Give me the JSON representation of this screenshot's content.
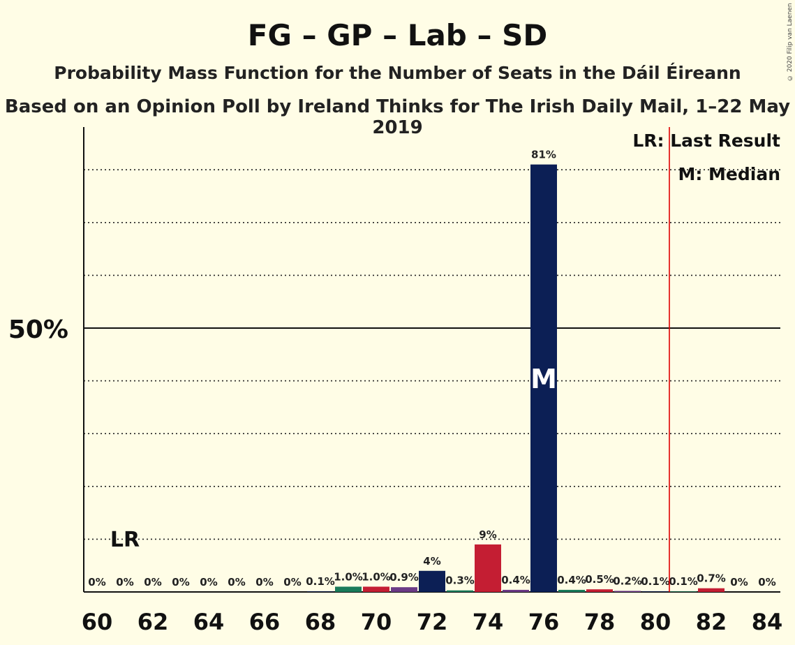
{
  "title": "FG – GP – Lab – SD",
  "subtitle": "Probability Mass Function for the Number of Seats in the Dáil Éireann",
  "subtitle2": "Based on an Opinion Poll by Ireland Thinks for The Irish Daily Mail, 1–22 May 2019",
  "copyright": "© 2020 Filip van Laenen",
  "legend": {
    "last_result": "LR: Last Result",
    "median": "M: Median"
  },
  "colors": {
    "background": "#fffde6",
    "navy": "#0c1f55",
    "red": "#c41e33",
    "green": "#1a7b5a",
    "purple": "#6b3a86",
    "last_result_line": "#e00000"
  },
  "chart_data": {
    "type": "bar",
    "x": [
      60,
      61,
      62,
      63,
      64,
      65,
      66,
      67,
      68,
      69,
      70,
      71,
      72,
      73,
      74,
      75,
      76,
      77,
      78,
      79,
      80,
      81,
      82,
      83,
      84
    ],
    "values": [
      0,
      0,
      0,
      0,
      0,
      0,
      0,
      0,
      0.1,
      1.0,
      1.0,
      0.9,
      4,
      0.3,
      9,
      0.4,
      81,
      0.4,
      0.5,
      0.2,
      0.1,
      0.1,
      0.7,
      0,
      0
    ],
    "data_labels": [
      "0%",
      "0%",
      "0%",
      "0%",
      "0%",
      "0%",
      "0%",
      "0%",
      "0.1%",
      "1.0%",
      "1.0%",
      "0.9%",
      "4%",
      "0.3%",
      "9%",
      "0.4%",
      "81%",
      "0.4%",
      "0.5%",
      "0.2%",
      "0.1%",
      "0.1%",
      "0.7%",
      "0%",
      "0%"
    ],
    "bar_colors": [
      "navy",
      "navy",
      "navy",
      "navy",
      "navy",
      "navy",
      "navy",
      "navy",
      "navy",
      "green",
      "red",
      "purple",
      "navy",
      "green",
      "red",
      "purple",
      "navy",
      "green",
      "red",
      "purple",
      "navy",
      "green",
      "red",
      "purple",
      "navy"
    ],
    "x_ticks": [
      60,
      62,
      64,
      66,
      68,
      70,
      72,
      74,
      76,
      78,
      80,
      82,
      84
    ],
    "y_tick_label": "50%",
    "y_tick_value": 50,
    "ylim": [
      0,
      88
    ],
    "gridlines": [
      10,
      20,
      30,
      40,
      60,
      70,
      80
    ],
    "median_seat": 76,
    "median_marker": "M",
    "last_result_seat": 80.5,
    "last_result_marker_seat": 61,
    "last_result_marker": "LR"
  }
}
